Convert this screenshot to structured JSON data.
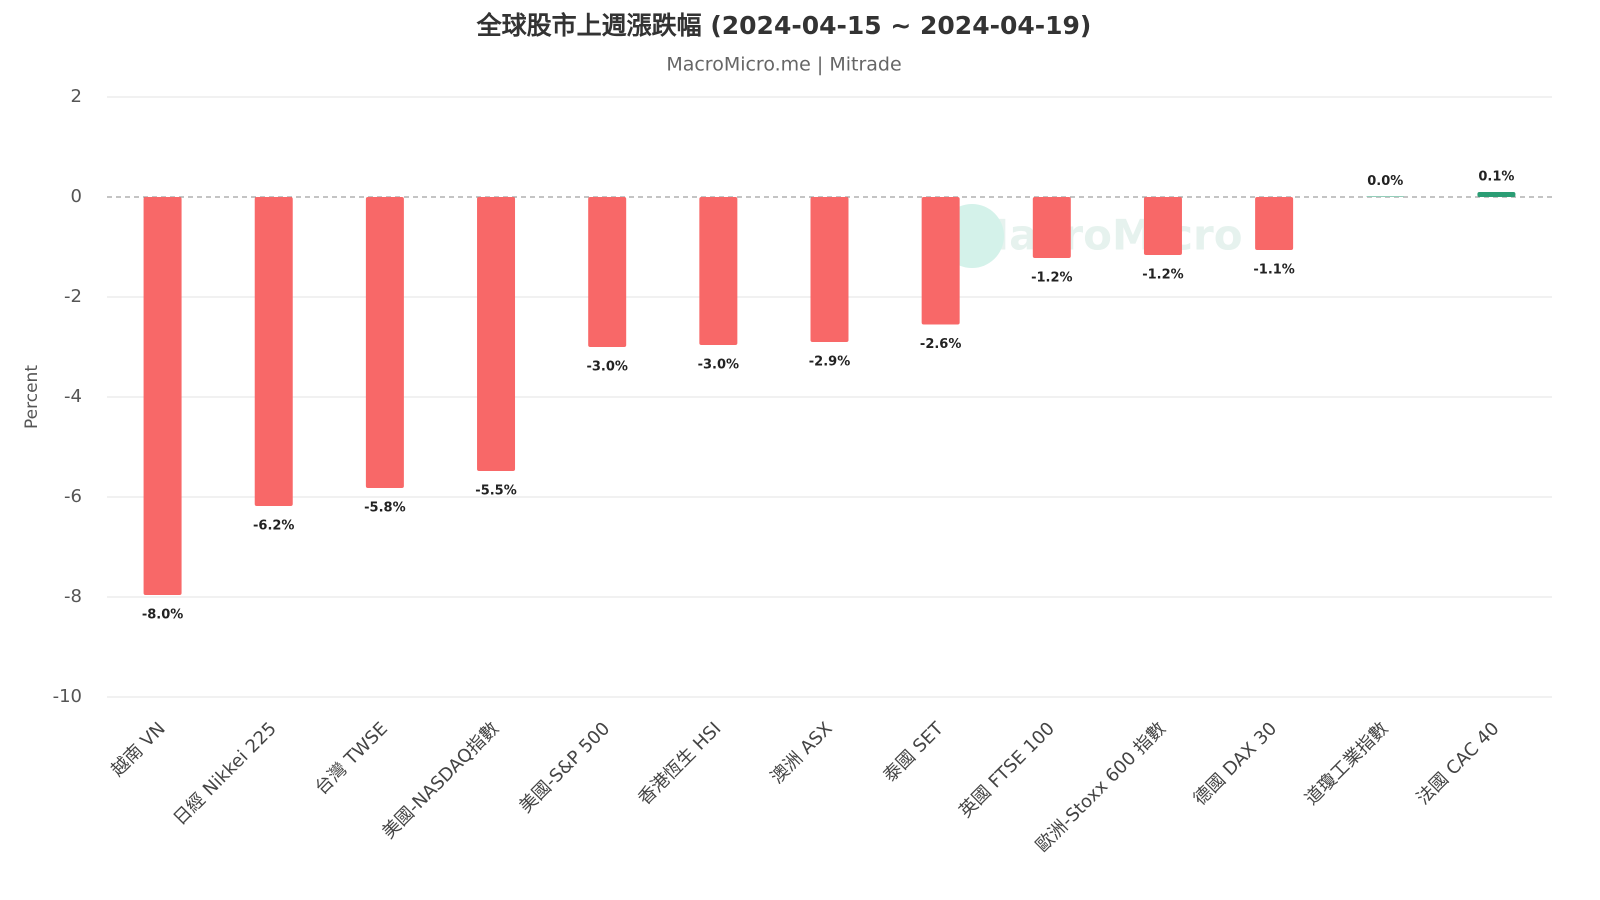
{
  "chart_data": {
    "type": "bar",
    "title": "全球股市上週漲跌幅 (2024-04-15 ~ 2024-04-19)",
    "subtitle": "MacroMicro.me | Mitrade",
    "watermark": "MacroMicro",
    "y_label": "Percent",
    "categories": [
      "越南 VN",
      "日經 Nikkei 225",
      "台灣 TWSE",
      "美國-NASDAQ指數",
      "美國-S&P 500",
      "香港恆生 HSI",
      "澳洲 ASX",
      "泰國 SET",
      "英國 FTSE 100",
      "歐洲-Stoxx 600 指數",
      "德國 DAX 30",
      "道瓊工業指數",
      "法國 CAC 40"
    ],
    "values": [
      -7.96,
      -6.18,
      -5.82,
      -5.48,
      -3.0,
      -2.96,
      -2.9,
      -2.55,
      -1.22,
      -1.16,
      -1.06,
      0.01,
      0.1
    ],
    "value_labels": [
      "-8.0%",
      "-6.2%",
      "-5.8%",
      "-5.5%",
      "-3.0%",
      "-3.0%",
      "-2.9%",
      "-2.6%",
      "-1.2%",
      "-1.2%",
      "-1.1%",
      "0.0%",
      "0.1%"
    ],
    "negative_color": "#f86868",
    "positive_color": "#2a9d74",
    "ylim": [
      -10,
      2
    ],
    "yticks": [
      -10,
      -8,
      -6,
      -4,
      -2,
      0,
      2
    ],
    "grid": true
  }
}
